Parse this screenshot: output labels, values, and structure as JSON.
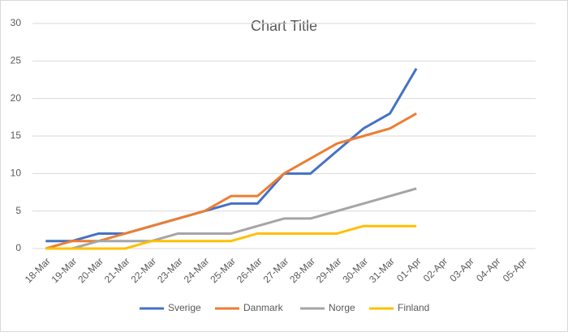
{
  "chart_data": {
    "type": "line",
    "title": "Chart Title",
    "categories": [
      "18-Mar",
      "19-Mar",
      "20-Mar",
      "21-Mar",
      "22-Mar",
      "23-Mar",
      "24-Mar",
      "25-Mar",
      "26-Mar",
      "27-Mar",
      "28-Mar",
      "29-Mar",
      "30-Mar",
      "31-Mar",
      "01-Apr",
      "02-Apr",
      "03-Apr",
      "04-Apr",
      "05-Apr"
    ],
    "series": [
      {
        "name": "Sverige",
        "color": "#4472c4",
        "values": [
          1,
          1,
          2,
          2,
          3,
          4,
          5,
          6,
          6,
          10,
          10,
          13,
          16,
          18,
          24,
          null,
          null,
          null,
          null
        ]
      },
      {
        "name": "Danmark",
        "color": "#ed7d31",
        "values": [
          0,
          1,
          1,
          2,
          3,
          4,
          5,
          7,
          7,
          10,
          12,
          14,
          15,
          16,
          18,
          null,
          null,
          null,
          null
        ]
      },
      {
        "name": "Norge",
        "color": "#a5a5a5",
        "values": [
          0,
          0,
          1,
          1,
          1,
          2,
          2,
          2,
          3,
          4,
          4,
          5,
          6,
          7,
          8,
          null,
          null,
          null,
          null
        ]
      },
      {
        "name": "Finland",
        "color": "#ffc000",
        "values": [
          0,
          0,
          0,
          0,
          1,
          1,
          1,
          1,
          2,
          2,
          2,
          2,
          3,
          3,
          3,
          null,
          null,
          null,
          null
        ]
      }
    ],
    "ylim": [
      0,
      30
    ],
    "yticks": [
      0,
      5,
      10,
      15,
      20,
      25,
      30
    ],
    "grid": true,
    "legend": "bottom"
  }
}
